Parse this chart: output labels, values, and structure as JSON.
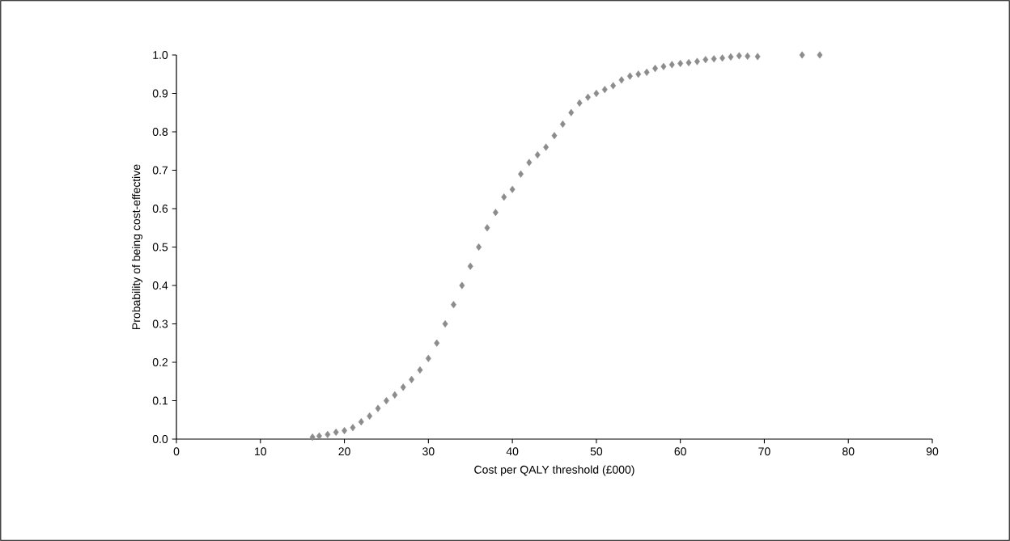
{
  "chart_data": {
    "type": "scatter",
    "xlabel": "Cost per QALY threshold (£000)",
    "ylabel": "Probability of being cost-effective",
    "marker": "diamond",
    "xlim": [
      0,
      90
    ],
    "xticks": [
      0,
      10,
      20,
      30,
      40,
      50,
      60,
      70,
      80,
      90
    ],
    "ylim": [
      0,
      1.0
    ],
    "yticks": [
      {
        "value": 0,
        "label": "0.0"
      },
      {
        "value": 0.1,
        "label": "0.1"
      },
      {
        "value": 0.2,
        "label": "0.2"
      },
      {
        "value": 0.3,
        "label": "0.3"
      },
      {
        "value": 0.4,
        "label": "0.4"
      },
      {
        "value": 0.5,
        "label": "0.5"
      },
      {
        "value": 0.6,
        "label": "0.6"
      },
      {
        "value": 0.7,
        "label": "0.7"
      },
      {
        "value": 0.8,
        "label": "0.8"
      },
      {
        "value": 0.9,
        "label": "0.9"
      },
      {
        "value": 1.0,
        "label": "1.0"
      }
    ],
    "series": [
      {
        "color": "#8c8c8c",
        "x": [
          16.2,
          17,
          18,
          19,
          20,
          21,
          22,
          23,
          24,
          25,
          26,
          27,
          28,
          29,
          30,
          31,
          32,
          33,
          34,
          35,
          36,
          37,
          38,
          39,
          40,
          41,
          42,
          43,
          44,
          45,
          46,
          47,
          48,
          49,
          50,
          51,
          52,
          53,
          54,
          55,
          56,
          57,
          58,
          59,
          60,
          61,
          62,
          63,
          64,
          65,
          66,
          67,
          68,
          69.2,
          74.5,
          76.6
        ],
        "values": [
          0.005,
          0.008,
          0.012,
          0.018,
          0.022,
          0.03,
          0.045,
          0.06,
          0.08,
          0.1,
          0.115,
          0.135,
          0.155,
          0.18,
          0.21,
          0.25,
          0.3,
          0.35,
          0.4,
          0.45,
          0.5,
          0.55,
          0.59,
          0.63,
          0.65,
          0.69,
          0.72,
          0.74,
          0.76,
          0.79,
          0.82,
          0.85,
          0.875,
          0.89,
          0.9,
          0.91,
          0.92,
          0.935,
          0.945,
          0.95,
          0.955,
          0.965,
          0.97,
          0.975,
          0.978,
          0.98,
          0.983,
          0.988,
          0.99,
          0.992,
          0.995,
          0.998,
          0.997,
          0.996,
          1.0,
          1.0
        ]
      }
    ]
  }
}
